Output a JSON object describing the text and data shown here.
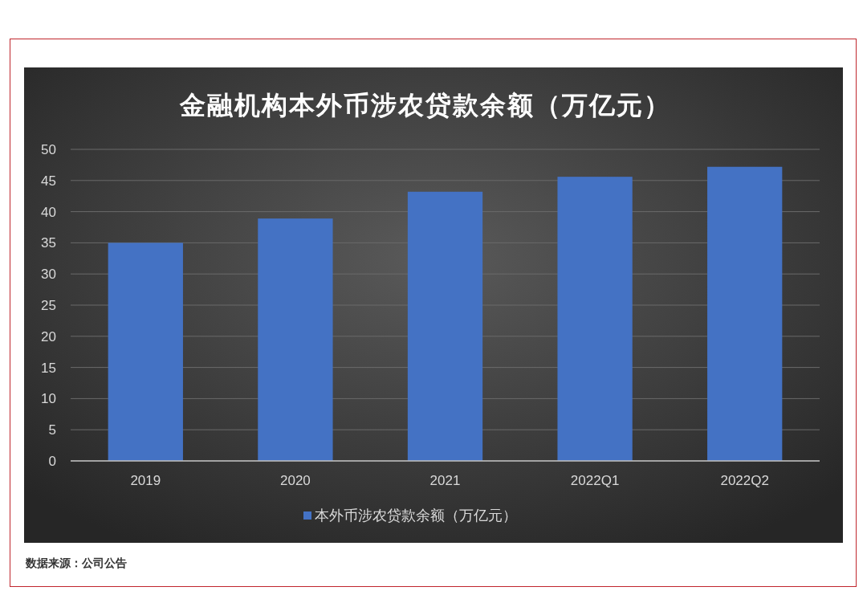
{
  "chart_data": {
    "type": "bar",
    "title": "金融机构本外币涉农贷款余额（万亿元）",
    "categories": [
      "2019",
      "2020",
      "2021",
      "2022Q1",
      "2022Q2"
    ],
    "series": [
      {
        "name": "本外币涉农贷款余额（万亿元）",
        "color": "#4472c4",
        "values": [
          35.0,
          38.9,
          43.2,
          45.6,
          47.2
        ]
      }
    ],
    "ylim": [
      0,
      50
    ],
    "yticks": [
      0,
      5,
      10,
      15,
      20,
      25,
      30,
      35,
      40,
      45,
      50
    ],
    "grid": "y",
    "legend": "bottom",
    "annotations": [
      "数据来源：公司公告"
    ]
  }
}
